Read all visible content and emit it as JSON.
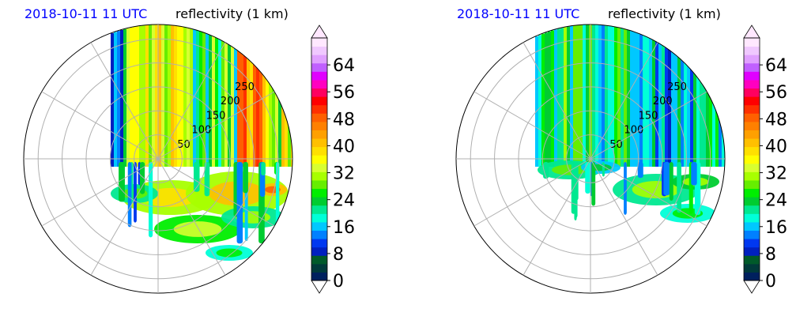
{
  "chart_data": [
    {
      "type": "heatmap",
      "projection": "polar",
      "title_left": "2018-10-11 11 UTC",
      "title_right": "reflectivity (1 km)",
      "title_left_color": "#0000ff",
      "range_rings": [
        50,
        100,
        150,
        200,
        250
      ],
      "radial_lines_deg": [
        0,
        30,
        60,
        90,
        120,
        150,
        180,
        210,
        240,
        270,
        300,
        330
      ],
      "grid": true,
      "colorbar": {
        "ticks": [
          0,
          8,
          16,
          24,
          32,
          40,
          48,
          56,
          64
        ],
        "range": [
          0,
          72
        ],
        "extend": "both"
      }
    },
    {
      "type": "heatmap",
      "projection": "polar",
      "title_left": "2018-10-11 11 UTC",
      "title_right": "reflectivity (1 km)",
      "title_left_color": "#0000ff",
      "range_rings": [
        50,
        100,
        150,
        200,
        250
      ],
      "radial_lines_deg": [
        0,
        30,
        60,
        90,
        120,
        150,
        180,
        210,
        240,
        270,
        300,
        330
      ],
      "grid": true,
      "colorbar": {
        "ticks": [
          0,
          8,
          16,
          24,
          32,
          40,
          48,
          56,
          64
        ],
        "range": [
          0,
          72
        ],
        "extend": "both"
      }
    }
  ],
  "colormap": [
    "#00205e",
    "#003a3a",
    "#005a2a",
    "#0020c0",
    "#0038f0",
    "#0080ff",
    "#00c8ff",
    "#00ffd8",
    "#00e890",
    "#00cc30",
    "#00ee00",
    "#66ee00",
    "#a8ff00",
    "#d8ff30",
    "#ffff00",
    "#ffe000",
    "#ffc000",
    "#ffa000",
    "#ff8000",
    "#ff6000",
    "#ff3000",
    "#ff0000",
    "#ff0060",
    "#ff00c0",
    "#e000ff",
    "#c060ff",
    "#e0a0ff",
    "#f0c8ff",
    "#ffe8ff"
  ]
}
